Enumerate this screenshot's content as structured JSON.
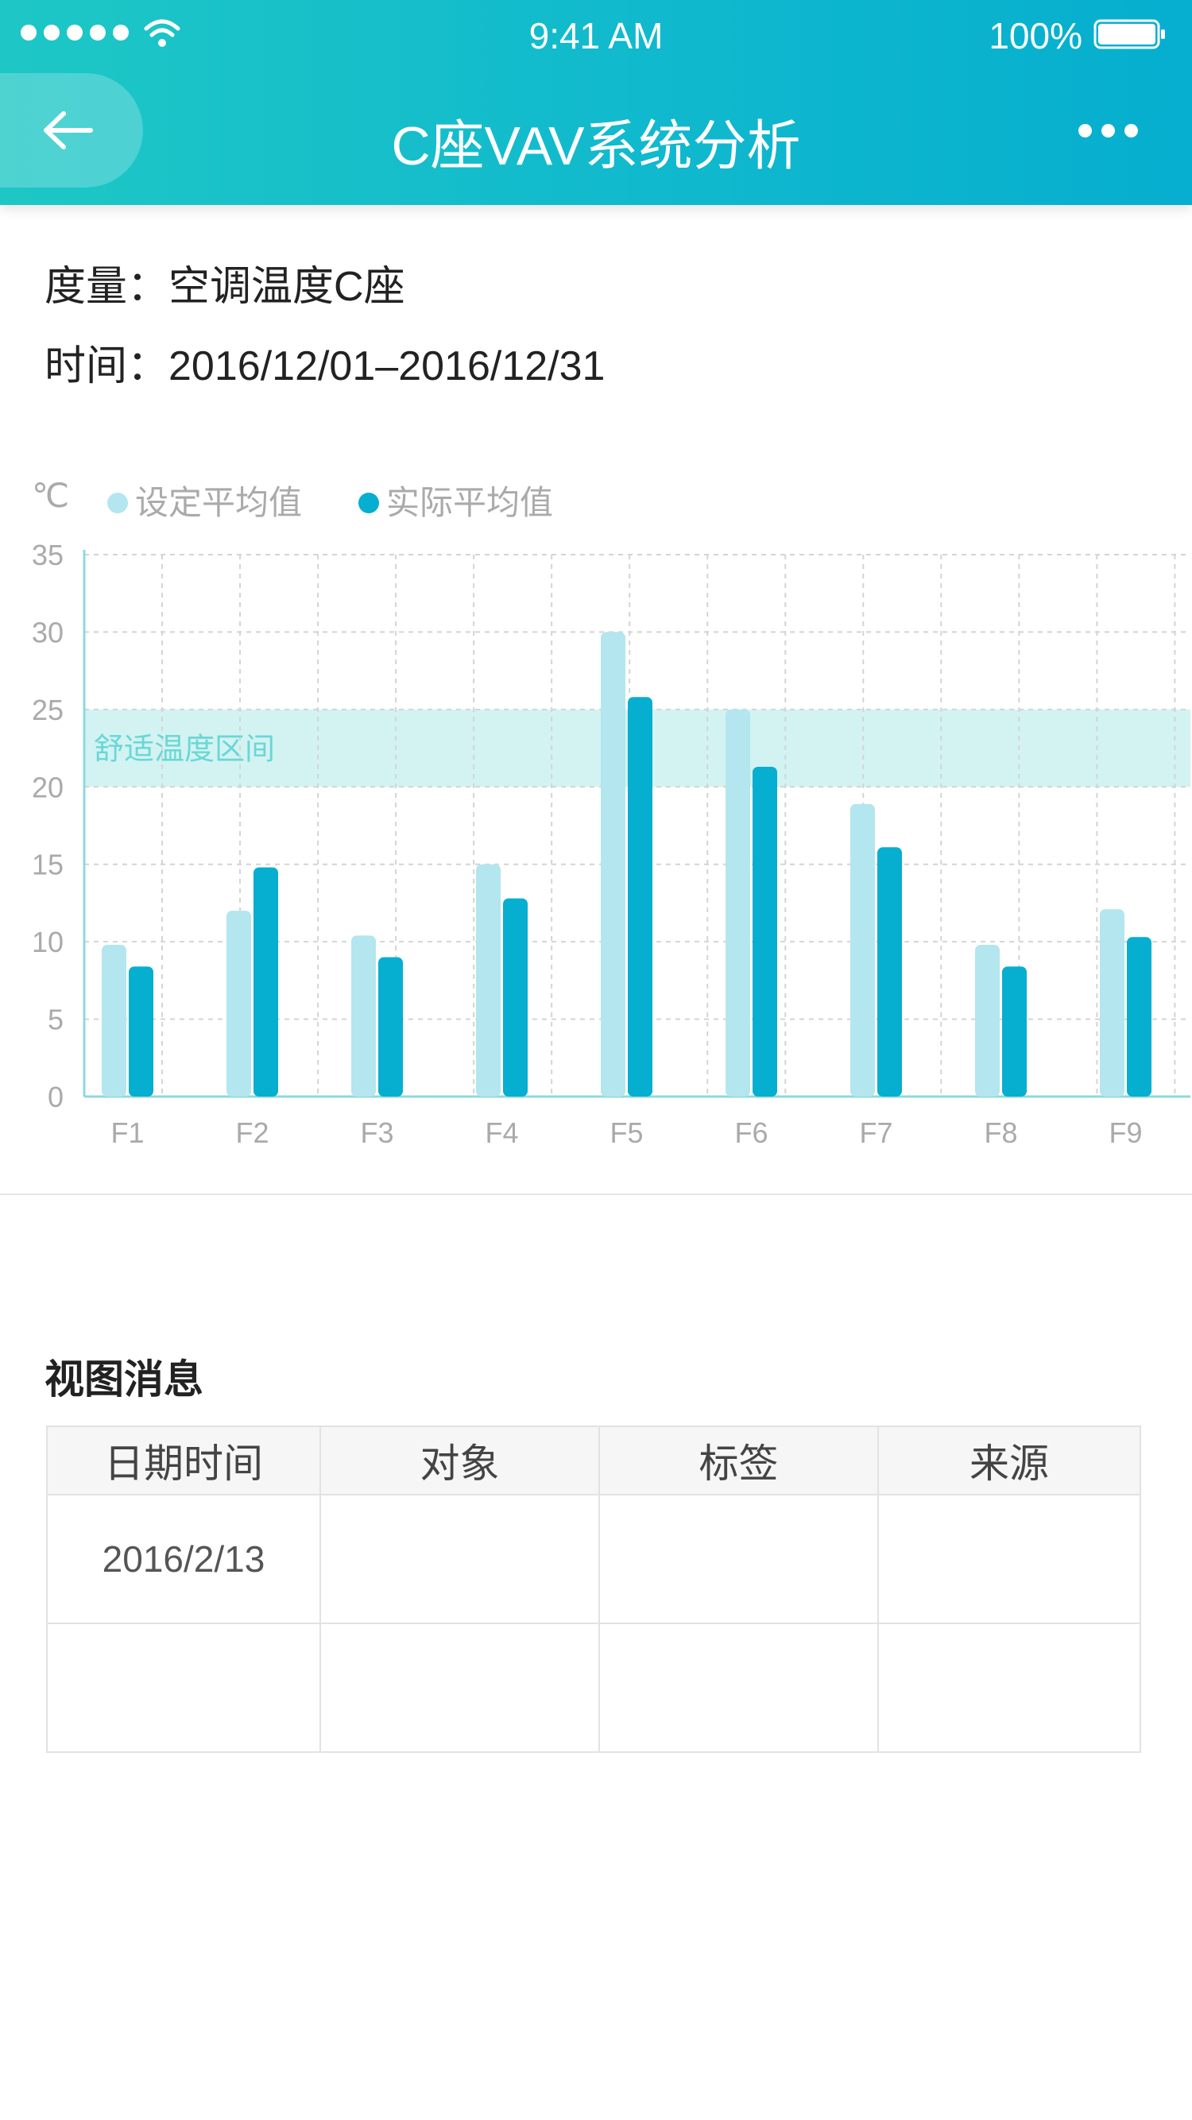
{
  "status_bar": {
    "time": "9:41 AM",
    "battery": "100%"
  },
  "nav": {
    "title": "C座VAV系统分析"
  },
  "info": {
    "metric_label": "度量：",
    "metric_value": "空调温度C座",
    "time_label": "时间：",
    "time_value": "2016/12/01–2016/12/31"
  },
  "chart_data": {
    "type": "bar",
    "unit": "℃",
    "categories": [
      "F1",
      "F2",
      "F3",
      "F4",
      "F5",
      "F6",
      "F7",
      "F8",
      "F9"
    ],
    "series": [
      {
        "name": "设定平均值",
        "color": "#b3e6ee",
        "values": [
          9.8,
          12,
          10.4,
          15,
          30,
          25,
          18.9,
          9.8,
          12.1
        ]
      },
      {
        "name": "实际平均值",
        "color": "#06aecf",
        "values": [
          8.4,
          14.8,
          9,
          12.8,
          25.8,
          21.3,
          16.1,
          8.4,
          10.3
        ]
      }
    ],
    "ylim": [
      0,
      35
    ],
    "yticks": [
      0,
      5,
      10,
      15,
      20,
      25,
      30,
      35
    ],
    "band": {
      "from": 20,
      "to": 25,
      "label": "舒适温度区间",
      "color": "#d2f3f2"
    },
    "grid": true,
    "legend": "top-left"
  },
  "messages": {
    "title": "视图消息",
    "headers": [
      "日期时间",
      "对象",
      "标签",
      "来源"
    ],
    "rows": [
      [
        "2016/2/13",
        "",
        "",
        ""
      ],
      [
        "",
        "",
        "",
        ""
      ]
    ]
  }
}
